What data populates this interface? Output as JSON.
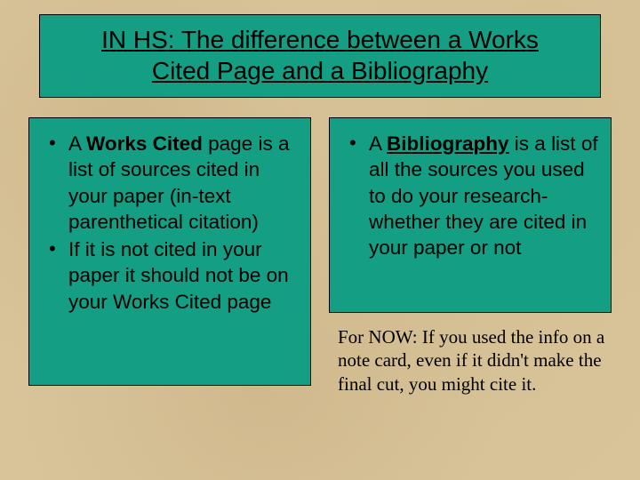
{
  "colors": {
    "background": "#d9c49a",
    "box_fill": "#149e83",
    "box_border": "#000000",
    "text": "#000000"
  },
  "typography": {
    "title_fontsize": 28,
    "body_fontsize": 22.5,
    "note_fontsize": 21,
    "title_font": "Arial",
    "note_font": "Times New Roman"
  },
  "title": {
    "line1": "IN HS: The difference between a Works",
    "line2": "Cited Page and a Bibliography"
  },
  "left": {
    "item1_prefix": "A ",
    "item1_bold": "Works Cited",
    "item1_rest": " page is a list of sources cited in your paper (in-text parenthetical citation)",
    "item2": "If it is not cited in your paper it should not be on your Works Cited page"
  },
  "right": {
    "item1_prefix": "A ",
    "item1_bold_underlined": "Bibliography",
    "item1_rest": " is a list of all the sources you used to do your research- whether they are cited in your paper or not"
  },
  "note": "For NOW: If you used the info on a note card, even if it didn't make the final cut, you might cite it."
}
